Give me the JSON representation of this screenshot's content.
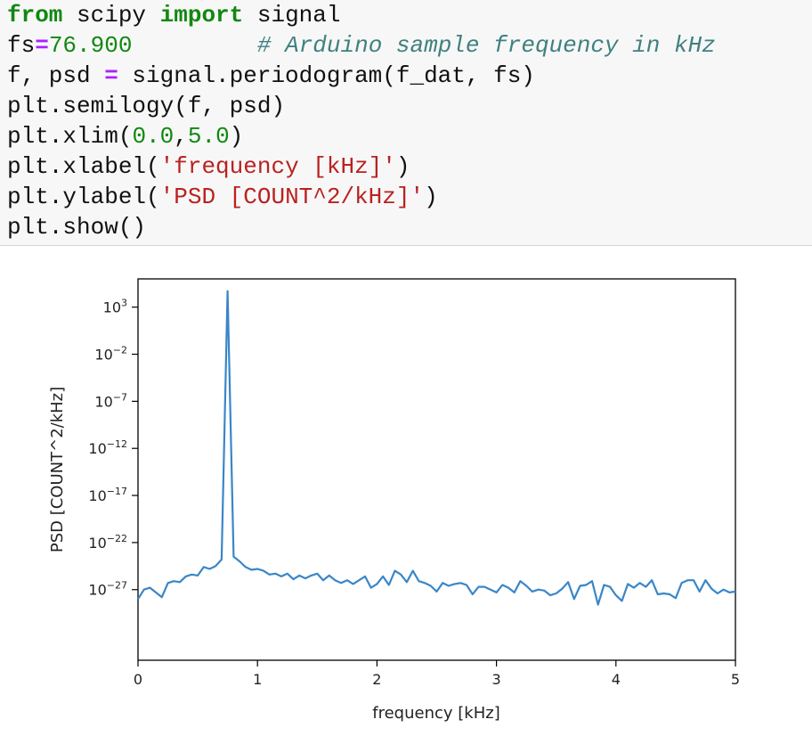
{
  "code_cell": {
    "lines": [
      {
        "parts": [
          {
            "t": "from",
            "c": "kw"
          },
          {
            "t": " scipy ",
            "c": ""
          },
          {
            "t": "import",
            "c": "kw"
          },
          {
            "t": " signal",
            "c": ""
          }
        ]
      },
      {
        "parts": [
          {
            "t": "fs",
            "c": ""
          },
          {
            "t": "=",
            "c": "op"
          },
          {
            "t": "76.900",
            "c": "num"
          },
          {
            "t": "         ",
            "c": ""
          },
          {
            "t": "# Arduino sample frequency in kHz",
            "c": "cmt"
          }
        ]
      },
      {
        "parts": [
          {
            "t": "f, psd ",
            "c": ""
          },
          {
            "t": "=",
            "c": "op"
          },
          {
            "t": " signal.periodogram(f_dat, fs)",
            "c": ""
          }
        ]
      },
      {
        "parts": [
          {
            "t": "plt.semilogy(f, psd)",
            "c": ""
          }
        ]
      },
      {
        "parts": [
          {
            "t": "plt.xlim(",
            "c": ""
          },
          {
            "t": "0.0",
            "c": "num"
          },
          {
            "t": ",",
            "c": ""
          },
          {
            "t": "5.0",
            "c": "num"
          },
          {
            "t": ")",
            "c": ""
          }
        ]
      },
      {
        "parts": [
          {
            "t": "plt.xlabel(",
            "c": ""
          },
          {
            "t": "'frequency [kHz]'",
            "c": "str"
          },
          {
            "t": ")",
            "c": ""
          }
        ]
      },
      {
        "parts": [
          {
            "t": "plt.ylabel(",
            "c": ""
          },
          {
            "t": "'PSD [COUNT^2/kHz]'",
            "c": "str"
          },
          {
            "t": ")",
            "c": ""
          }
        ]
      },
      {
        "parts": [
          {
            "t": "plt.show()",
            "c": ""
          }
        ]
      }
    ]
  },
  "colors": {
    "line": "#3a86c8",
    "keyword": "#118811",
    "string": "#ba2121",
    "comment": "#408080",
    "operator": "#aa22ff"
  },
  "chart_data": {
    "type": "line",
    "scale_y": "log",
    "xlabel": "frequency [kHz]",
    "ylabel": "PSD [COUNT^2/kHz]",
    "xlim": [
      0.0,
      5.0
    ],
    "ylim_log10": [
      -34.5,
      6.0
    ],
    "grid": false,
    "x_ticks": [
      {
        "v": 0,
        "label": "0"
      },
      {
        "v": 1,
        "label": "1"
      },
      {
        "v": 2,
        "label": "2"
      },
      {
        "v": 3,
        "label": "3"
      },
      {
        "v": 4,
        "label": "4"
      },
      {
        "v": 5,
        "label": "5"
      }
    ],
    "y_ticks": [
      {
        "v": 3,
        "base": "10",
        "exp": "3"
      },
      {
        "v": -2,
        "base": "10",
        "exp": "−2"
      },
      {
        "v": -7,
        "base": "10",
        "exp": "−7"
      },
      {
        "v": -12,
        "base": "10",
        "exp": "−12"
      },
      {
        "v": -17,
        "base": "10",
        "exp": "−17"
      },
      {
        "v": -22,
        "base": "10",
        "exp": "−22"
      },
      {
        "v": -27,
        "base": "10",
        "exp": "−27"
      }
    ],
    "series": [
      {
        "x": [
          0.0,
          0.05,
          0.1,
          0.15,
          0.2,
          0.25,
          0.3,
          0.35,
          0.4,
          0.45,
          0.5,
          0.55,
          0.6,
          0.65,
          0.7,
          0.75,
          0.8,
          0.85,
          0.9,
          0.95,
          1.0,
          1.05,
          1.1,
          1.15,
          1.2,
          1.25,
          1.3,
          1.35,
          1.4,
          1.45,
          1.5,
          1.55,
          1.6,
          1.65,
          1.7,
          1.75,
          1.8,
          1.85,
          1.9,
          1.95,
          2.0,
          2.05,
          2.1,
          2.15,
          2.2,
          2.25,
          2.3,
          2.35,
          2.4,
          2.45,
          2.5,
          2.55,
          2.6,
          2.65,
          2.7,
          2.75,
          2.8,
          2.85,
          2.9,
          2.95,
          3.0,
          3.05,
          3.1,
          3.15,
          3.2,
          3.25,
          3.3,
          3.35,
          3.4,
          3.45,
          3.5,
          3.55,
          3.6,
          3.65,
          3.7,
          3.75,
          3.8,
          3.85,
          3.9,
          3.95,
          4.0,
          4.05,
          4.1,
          4.15,
          4.2,
          4.25,
          4.3,
          4.35,
          4.4,
          4.45,
          4.5,
          4.55,
          4.6,
          4.65,
          4.7,
          4.75,
          4.8,
          4.85,
          4.9,
          4.95,
          5.0
        ],
        "log10_y": [
          -28.0,
          -27.0,
          -26.8,
          -27.3,
          -27.8,
          -26.3,
          -26.1,
          -26.2,
          -25.6,
          -25.4,
          -25.5,
          -24.6,
          -24.8,
          -24.5,
          -23.8,
          4.7,
          -23.5,
          -24.0,
          -24.6,
          -24.9,
          -24.8,
          -25.0,
          -25.4,
          -25.3,
          -25.6,
          -25.3,
          -25.9,
          -25.5,
          -25.8,
          -25.5,
          -25.3,
          -26.0,
          -25.5,
          -26.0,
          -26.3,
          -26.0,
          -26.4,
          -26.0,
          -25.6,
          -26.8,
          -26.4,
          -25.6,
          -26.5,
          -25.0,
          -25.4,
          -26.2,
          -25.0,
          -26.1,
          -26.3,
          -26.6,
          -27.2,
          -26.3,
          -26.6,
          -26.4,
          -26.3,
          -26.5,
          -27.5,
          -26.7,
          -26.7,
          -27.0,
          -27.3,
          -26.5,
          -26.8,
          -27.3,
          -26.1,
          -26.6,
          -27.2,
          -27.0,
          -27.1,
          -27.6,
          -27.4,
          -26.9,
          -26.2,
          -28.0,
          -26.6,
          -26.5,
          -26.1,
          -28.6,
          -26.5,
          -26.7,
          -27.6,
          -28.2,
          -26.4,
          -26.8,
          -26.3,
          -26.7,
          -26.0,
          -27.5,
          -27.4,
          -27.5,
          -27.9,
          -26.3,
          -26.0,
          -26.0,
          -27.2,
          -26.0,
          -26.9,
          -27.4,
          -27.0,
          -27.3,
          -27.2
        ]
      }
    ]
  }
}
